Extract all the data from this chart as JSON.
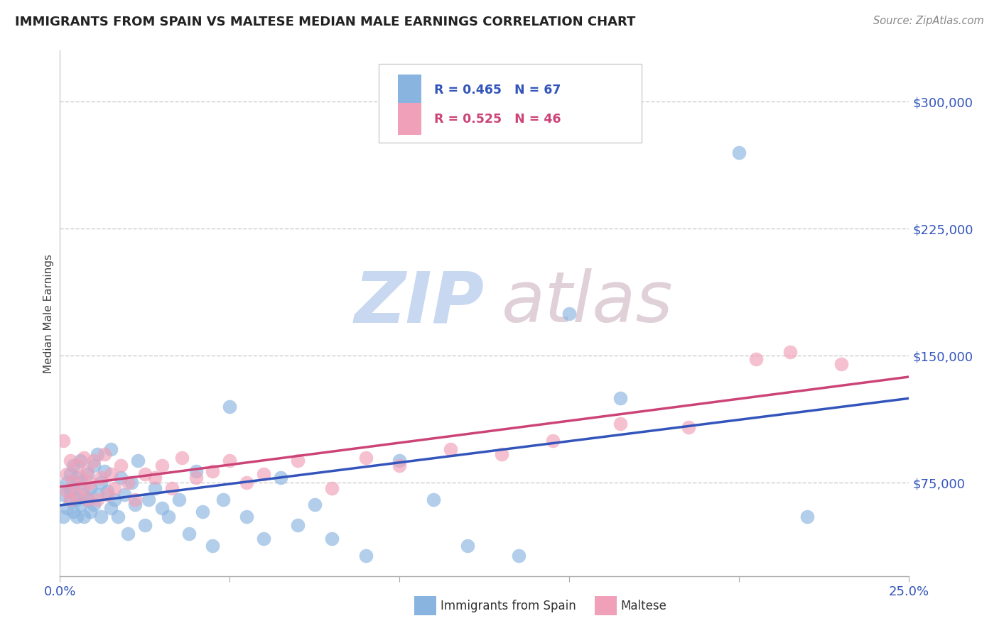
{
  "title": "IMMIGRANTS FROM SPAIN VS MALTESE MEDIAN MALE EARNINGS CORRELATION CHART",
  "source": "Source: ZipAtlas.com",
  "ylabel": "Median Male Earnings",
  "xlim": [
    0.0,
    0.25
  ],
  "ylim": [
    20000,
    330000
  ],
  "yticks": [
    75000,
    150000,
    225000,
    300000
  ],
  "ytick_labels": [
    "$75,000",
    "$150,000",
    "$225,000",
    "$300,000"
  ],
  "xticks": [
    0.0,
    0.05,
    0.1,
    0.15,
    0.2,
    0.25
  ],
  "xtick_labels": [
    "0.0%",
    "",
    "",
    "",
    "",
    "25.0%"
  ],
  "background_color": "#ffffff",
  "blue_color": "#8ab4e0",
  "pink_color": "#f0a0b8",
  "blue_line_color": "#3355bb",
  "pink_line_color": "#cc4477",
  "legend_R1": "R = 0.465",
  "legend_N1": "N = 67",
  "legend_R2": "R = 0.525",
  "legend_N2": "N = 46",
  "legend_label1": "Immigrants from Spain",
  "legend_label2": "Maltese",
  "blue_x": [
    0.001,
    0.001,
    0.002,
    0.002,
    0.003,
    0.003,
    0.003,
    0.004,
    0.004,
    0.004,
    0.005,
    0.005,
    0.005,
    0.006,
    0.006,
    0.006,
    0.007,
    0.007,
    0.008,
    0.008,
    0.009,
    0.009,
    0.01,
    0.01,
    0.011,
    0.011,
    0.012,
    0.012,
    0.013,
    0.014,
    0.015,
    0.015,
    0.016,
    0.017,
    0.018,
    0.019,
    0.02,
    0.021,
    0.022,
    0.023,
    0.025,
    0.026,
    0.028,
    0.03,
    0.032,
    0.035,
    0.038,
    0.04,
    0.042,
    0.045,
    0.048,
    0.05,
    0.055,
    0.06,
    0.065,
    0.07,
    0.075,
    0.08,
    0.09,
    0.1,
    0.11,
    0.12,
    0.135,
    0.15,
    0.165,
    0.2,
    0.22
  ],
  "blue_y": [
    68000,
    55000,
    75000,
    60000,
    70000,
    65000,
    80000,
    58000,
    72000,
    85000,
    65000,
    78000,
    55000,
    88000,
    62000,
    75000,
    68000,
    55000,
    80000,
    65000,
    72000,
    58000,
    85000,
    62000,
    92000,
    68000,
    75000,
    55000,
    82000,
    70000,
    60000,
    95000,
    65000,
    55000,
    78000,
    68000,
    45000,
    75000,
    62000,
    88000,
    50000,
    65000,
    72000,
    60000,
    55000,
    65000,
    45000,
    82000,
    58000,
    38000,
    65000,
    120000,
    55000,
    42000,
    78000,
    50000,
    62000,
    42000,
    32000,
    88000,
    65000,
    38000,
    32000,
    175000,
    125000,
    270000,
    55000
  ],
  "pink_x": [
    0.001,
    0.002,
    0.002,
    0.003,
    0.003,
    0.004,
    0.005,
    0.005,
    0.006,
    0.007,
    0.007,
    0.008,
    0.008,
    0.009,
    0.01,
    0.011,
    0.012,
    0.013,
    0.014,
    0.015,
    0.016,
    0.018,
    0.02,
    0.022,
    0.025,
    0.028,
    0.03,
    0.033,
    0.036,
    0.04,
    0.045,
    0.05,
    0.055,
    0.06,
    0.07,
    0.08,
    0.09,
    0.1,
    0.115,
    0.13,
    0.145,
    0.165,
    0.185,
    0.205,
    0.215,
    0.23
  ],
  "pink_y": [
    100000,
    70000,
    80000,
    65000,
    88000,
    75000,
    85000,
    68000,
    78000,
    72000,
    90000,
    65000,
    82000,
    75000,
    88000,
    65000,
    78000,
    92000,
    68000,
    80000,
    72000,
    85000,
    75000,
    65000,
    80000,
    78000,
    85000,
    72000,
    90000,
    78000,
    82000,
    88000,
    75000,
    80000,
    88000,
    72000,
    90000,
    85000,
    95000,
    92000,
    100000,
    110000,
    108000,
    148000,
    152000,
    145000
  ]
}
